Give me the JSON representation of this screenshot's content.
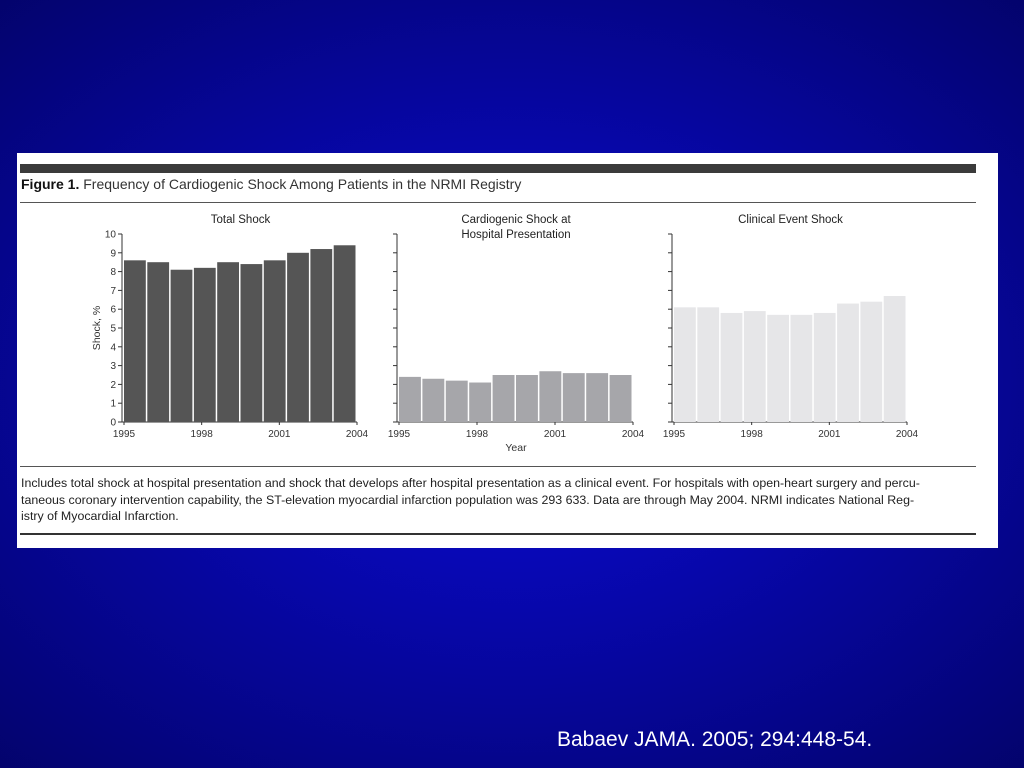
{
  "figure": {
    "label": "Figure 1.",
    "title": "Frequency of Cardiogenic Shock Among Patients in the NRMI Registry",
    "caption_lines": [
      "Includes total shock at hospital presentation and shock that develops after hospital presentation as a clinical event. For hospitals with open-heart surgery and percu-",
      "taneous coronary intervention capability, the ST-elevation myocardial infarction population was 293 633. Data are through May 2004. NRMI indicates National Reg-",
      "istry of Myocardial Infarction."
    ]
  },
  "citation": "Babaev JAMA. 2005; 294:448-54.",
  "chart_data": [
    {
      "type": "bar",
      "title": "Total Shock",
      "ylabel": "Shock, %",
      "xlabel": "",
      "ylim": [
        0,
        10
      ],
      "yticks": [
        0,
        1,
        2,
        3,
        4,
        5,
        6,
        7,
        8,
        9,
        10
      ],
      "x_tick_labels": [
        "1995",
        "1998",
        "2001",
        "2004"
      ],
      "categories": [
        "1995",
        "1996",
        "1997",
        "1998",
        "1999",
        "2000",
        "2001",
        "2002",
        "2003",
        "2004"
      ],
      "values": [
        8.6,
        8.5,
        8.1,
        8.2,
        8.5,
        8.4,
        8.6,
        9.0,
        9.2,
        9.4
      ],
      "color": "#555555"
    },
    {
      "type": "bar",
      "title": "Cardiogenic Shock at Hospital Presentation",
      "ylabel": "",
      "xlabel": "Year",
      "ylim": [
        0,
        10
      ],
      "yticks": [
        0,
        1,
        2,
        3,
        4,
        5,
        6,
        7,
        8,
        9,
        10
      ],
      "x_tick_labels": [
        "1995",
        "1998",
        "2001",
        "2004"
      ],
      "categories": [
        "1995",
        "1996",
        "1997",
        "1998",
        "1999",
        "2000",
        "2001",
        "2002",
        "2003",
        "2004"
      ],
      "values": [
        2.4,
        2.3,
        2.2,
        2.1,
        2.5,
        2.5,
        2.7,
        2.6,
        2.6,
        2.5
      ],
      "color": "#a6a6aa"
    },
    {
      "type": "bar",
      "title": "Clinical Event Shock",
      "ylabel": "",
      "xlabel": "",
      "ylim": [
        0,
        10
      ],
      "yticks": [
        0,
        1,
        2,
        3,
        4,
        5,
        6,
        7,
        8,
        9,
        10
      ],
      "x_tick_labels": [
        "1995",
        "1998",
        "2001",
        "2004"
      ],
      "categories": [
        "1995",
        "1996",
        "1997",
        "1998",
        "1999",
        "2000",
        "2001",
        "2002",
        "2003",
        "2004"
      ],
      "values": [
        6.1,
        6.1,
        5.8,
        5.9,
        5.7,
        5.7,
        5.8,
        6.3,
        6.4,
        6.7
      ],
      "color": "#e6e6e8"
    }
  ]
}
